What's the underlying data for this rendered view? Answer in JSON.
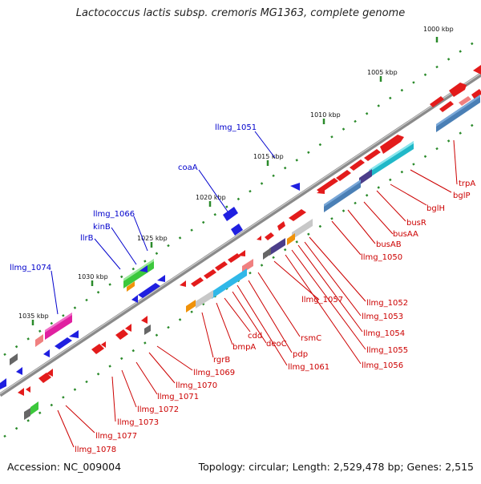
{
  "title": "Lactococcus lactis subsp. cremoris MG1363, complete genome",
  "footer": {
    "accession": "Accession: NC_009004",
    "summary": "Topology: circular; Length: 2,529,478 bp; Genes: 2,515"
  },
  "colors": {
    "backbone": "#8a8a8a",
    "scale_tick": "#2a8a2a",
    "upper_label": "#0000cc",
    "lower_label": "#cc0000"
  },
  "scale_labels": [
    {
      "id": "kbp-1000",
      "text": "1000 kbp"
    },
    {
      "id": "kbp-1005",
      "text": "1005 kbp"
    },
    {
      "id": "kbp-1010",
      "text": "1010 kbp"
    },
    {
      "id": "kbp-1015",
      "text": "1015 kbp"
    },
    {
      "id": "kbp-1020",
      "text": "1020 kbp"
    },
    {
      "id": "kbp-1025",
      "text": "1025 kbp"
    },
    {
      "id": "kbp-1030",
      "text": "1030 kbp"
    },
    {
      "id": "kbp-1035",
      "text": "1035 kbp"
    }
  ],
  "upper_labels": [
    {
      "id": "llmg-1051",
      "text": "llmg_1051"
    },
    {
      "id": "coaA",
      "text": "coaA"
    },
    {
      "id": "llmg-1066",
      "text": "llmg_1066"
    },
    {
      "id": "kinB",
      "text": "kinB"
    },
    {
      "id": "llrB",
      "text": "llrB"
    },
    {
      "id": "llmg-1074",
      "text": "llmg_1074"
    }
  ],
  "lower_labels": [
    {
      "id": "trpA",
      "text": "trpA"
    },
    {
      "id": "bglP",
      "text": "bglP"
    },
    {
      "id": "bglH",
      "text": "bglH"
    },
    {
      "id": "busR",
      "text": "busR"
    },
    {
      "id": "busAA",
      "text": "busAA"
    },
    {
      "id": "busAB",
      "text": "busAB"
    },
    {
      "id": "llmg-1050",
      "text": "llmg_1050"
    },
    {
      "id": "llmg-1052",
      "text": "llmg_1052"
    },
    {
      "id": "llmg-1053",
      "text": "llmg_1053"
    },
    {
      "id": "llmg-1054",
      "text": "llmg_1054"
    },
    {
      "id": "llmg-1055",
      "text": "llmg_1055"
    },
    {
      "id": "llmg-1056",
      "text": "llmg_1056"
    },
    {
      "id": "llmg-1057",
      "text": "llmg_1057"
    },
    {
      "id": "rsmC",
      "text": "rsmC"
    },
    {
      "id": "pdp",
      "text": "pdp"
    },
    {
      "id": "llmg-1061",
      "text": "llmg_1061"
    },
    {
      "id": "deoC",
      "text": "deoC"
    },
    {
      "id": "cdd",
      "text": "cdd"
    },
    {
      "id": "bmpA",
      "text": "bmpA"
    },
    {
      "id": "rgrB",
      "text": "rgrB"
    },
    {
      "id": "llmg-1069",
      "text": "llmg_1069"
    },
    {
      "id": "llmg-1070",
      "text": "llmg_1070"
    },
    {
      "id": "llmg-1071",
      "text": "llmg_1071"
    },
    {
      "id": "llmg-1072",
      "text": "llmg_1072"
    },
    {
      "id": "llmg-1073",
      "text": "llmg_1073"
    },
    {
      "id": "llmg-1077",
      "text": "llmg_1077"
    },
    {
      "id": "llmg-1078",
      "text": "llmg_1078"
    }
  ]
}
